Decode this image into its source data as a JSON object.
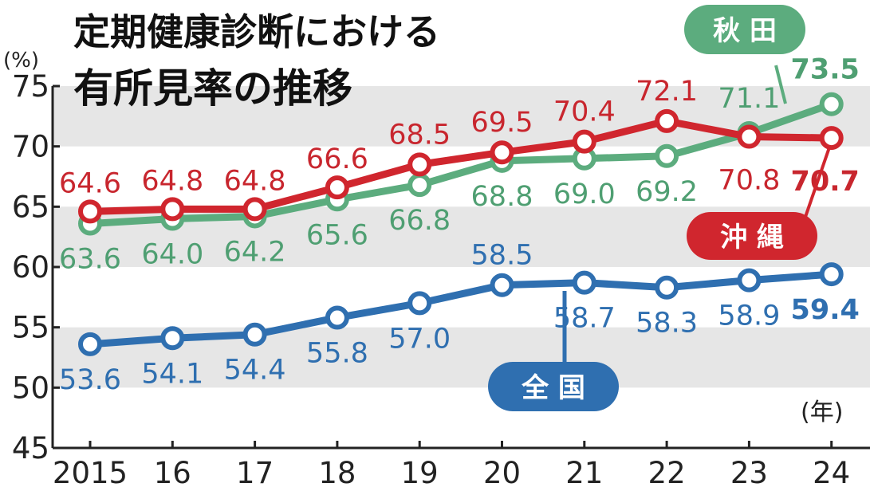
{
  "title_lines": [
    "定期健康診断における",
    "有所見率の推移"
  ],
  "chart_data": {
    "type": "line",
    "title": "定期健康診断における有所見率の推移",
    "ylabel": "(%)",
    "xlabel": "(年)",
    "ylim": [
      45,
      75
    ],
    "yticks": [
      45,
      50,
      55,
      60,
      65,
      70,
      75
    ],
    "categories": [
      "2015",
      "16",
      "17",
      "18",
      "19",
      "20",
      "21",
      "22",
      "23",
      "24"
    ],
    "grid": "alternating horizontal bands",
    "series": [
      {
        "name": "沖縄",
        "color": "#d0262e",
        "values": [
          64.6,
          64.8,
          64.8,
          66.6,
          68.5,
          69.5,
          70.4,
          72.1,
          70.8,
          70.7
        ],
        "labels": [
          "64.6",
          "64.8",
          "64.8",
          "66.6",
          "68.5",
          "69.5",
          "70.4",
          "72.1",
          "70.8",
          "70.7"
        ]
      },
      {
        "name": "秋田",
        "color": "#5cac7e",
        "values": [
          63.6,
          64.0,
          64.2,
          65.6,
          66.8,
          68.8,
          69.0,
          69.2,
          71.1,
          73.5
        ],
        "labels": [
          "63.6",
          "64.0",
          "64.2",
          "65.6",
          "66.8",
          "68.8",
          "69.0",
          "69.2",
          "71.1",
          "73.5"
        ]
      },
      {
        "name": "全国",
        "color": "#2f6fb0",
        "values": [
          53.6,
          54.1,
          54.4,
          55.8,
          57.0,
          58.5,
          58.7,
          58.3,
          58.9,
          59.4
        ],
        "labels": [
          "53.6",
          "54.1",
          "54.4",
          "55.8",
          "57.0",
          "58.5",
          "58.7",
          "58.3",
          "58.9",
          "59.4"
        ]
      }
    ]
  },
  "legend": {
    "okinawa": "沖 縄",
    "akita": "秋 田",
    "zenkoku": "全 国"
  }
}
